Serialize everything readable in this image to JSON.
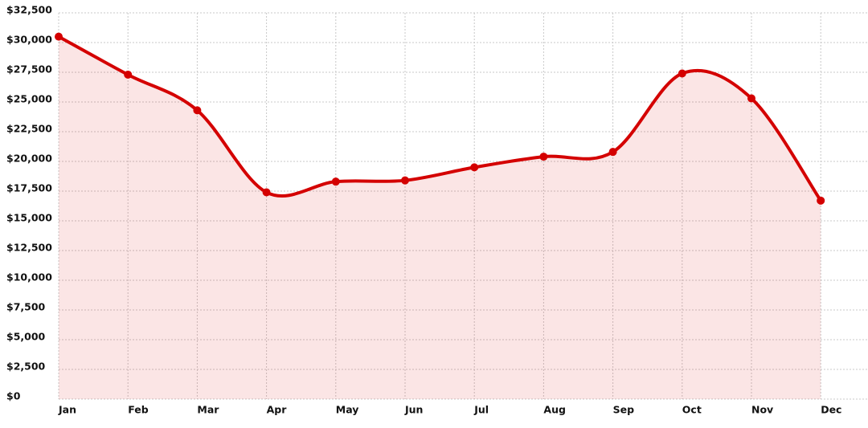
{
  "chart_data": {
    "type": "area",
    "categories": [
      "Jan",
      "Feb",
      "Mar",
      "Apr",
      "May",
      "Jun",
      "Jul",
      "Aug",
      "Sep",
      "Oct",
      "Nov",
      "Dec"
    ],
    "values": [
      30500,
      27300,
      24300,
      17400,
      18300,
      18400,
      19500,
      20400,
      20800,
      27400,
      25300,
      16700
    ],
    "color": "#d40000",
    "ylim": [
      0,
      32500
    ],
    "yticks": [
      {
        "value": 0,
        "label": "$0"
      },
      {
        "value": 2500,
        "label": "$2,500"
      },
      {
        "value": 5000,
        "label": "$5,000"
      },
      {
        "value": 7500,
        "label": "$7,500"
      },
      {
        "value": 10000,
        "label": "$10,000"
      },
      {
        "value": 12500,
        "label": "$12,500"
      },
      {
        "value": 15000,
        "label": "$15,000"
      },
      {
        "value": 17500,
        "label": "$17,500"
      },
      {
        "value": 20000,
        "label": "$20,000"
      },
      {
        "value": 22500,
        "label": "$22,500"
      },
      {
        "value": 25000,
        "label": "$25,000"
      },
      {
        "value": 27500,
        "label": "$27,500"
      },
      {
        "value": 30000,
        "label": "$30,000"
      },
      {
        "value": 32500,
        "label": "$32,500"
      }
    ],
    "grid": true
  }
}
